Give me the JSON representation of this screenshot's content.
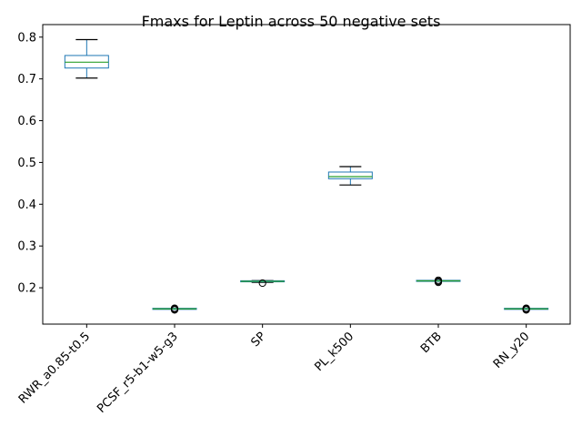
{
  "chart_data": {
    "type": "box",
    "title": "Fmaxs for Leptin across 50 negative sets",
    "xlabel": "",
    "ylabel": "",
    "ylim": [
      0.113,
      0.83
    ],
    "yticks": [
      0.2,
      0.3,
      0.4,
      0.5,
      0.6,
      0.7,
      0.8
    ],
    "ytick_labels": [
      "0.2",
      "0.3",
      "0.4",
      "0.5",
      "0.6",
      "0.7",
      "0.8"
    ],
    "xtick_rotation_deg": 45,
    "grid": false,
    "legend": "none",
    "colors": {
      "box": "#1f77b4",
      "median": "#2ca02c",
      "whisker": "#000000",
      "flier": "#000000"
    },
    "categories": [
      "RWR_a0.85-t0.5",
      "PCSF_r5-b1-w5-g3",
      "SP",
      "PL_k500",
      "BTB",
      "RN_y20"
    ],
    "boxes": [
      {
        "category": "RWR_a0.85-t0.5",
        "whislo": 0.702,
        "q1": 0.726,
        "med": 0.74,
        "q3": 0.756,
        "whishi": 0.794,
        "fliers": []
      },
      {
        "category": "PCSF_r5-b1-w5-g3",
        "whislo": 0.1495,
        "q1": 0.1495,
        "med": 0.1495,
        "q3": 0.1495,
        "whishi": 0.1495,
        "fliers": [
          0.147,
          0.149,
          0.151
        ]
      },
      {
        "category": "SP",
        "whislo": 0.213,
        "q1": 0.2145,
        "med": 0.2155,
        "q3": 0.2165,
        "whishi": 0.217,
        "fliers": [
          0.211
        ]
      },
      {
        "category": "PL_k500",
        "whislo": 0.446,
        "q1": 0.461,
        "med": 0.466,
        "q3": 0.477,
        "whishi": 0.49,
        "fliers": []
      },
      {
        "category": "BTB",
        "whislo": 0.2165,
        "q1": 0.2165,
        "med": 0.2165,
        "q3": 0.2165,
        "whishi": 0.2165,
        "fliers": [
          0.213,
          0.2155,
          0.218
        ]
      },
      {
        "category": "RN_y20",
        "whislo": 0.1495,
        "q1": 0.1495,
        "med": 0.1495,
        "q3": 0.1495,
        "whishi": 0.1495,
        "fliers": [
          0.147,
          0.149,
          0.151
        ]
      }
    ]
  }
}
